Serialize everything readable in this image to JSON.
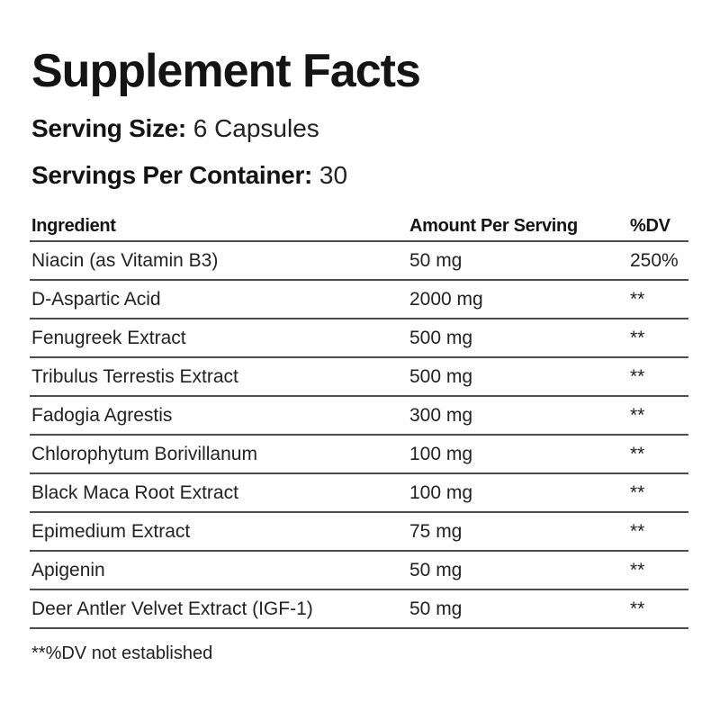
{
  "label": {
    "title": "Supplement Facts",
    "serving_size_label": "Serving Size:",
    "serving_size_value": "6 Capsules",
    "servings_per_container_label": "Servings Per Container:",
    "servings_per_container_value": "30",
    "footnote": "**%DV not established"
  },
  "table": {
    "columns": {
      "ingredient": "Ingredient",
      "amount": "Amount Per Serving",
      "dv": "%DV"
    },
    "rows": [
      {
        "ingredient": "Niacin (as Vitamin B3)",
        "amount": "50 mg",
        "dv": "250%"
      },
      {
        "ingredient": "D-Aspartic Acid",
        "amount": "2000 mg",
        "dv": "**"
      },
      {
        "ingredient": "Fenugreek Extract",
        "amount": "500 mg",
        "dv": "**"
      },
      {
        "ingredient": "Tribulus Terrestis Extract",
        "amount": "500 mg",
        "dv": "**"
      },
      {
        "ingredient": "Fadogia Agrestis",
        "amount": "300 mg",
        "dv": "**"
      },
      {
        "ingredient": "Chlorophytum Borivillanum",
        "amount": "100 mg",
        "dv": "**"
      },
      {
        "ingredient": "Black Maca Root Extract",
        "amount": "100 mg",
        "dv": "**"
      },
      {
        "ingredient": "Epimedium Extract",
        "amount": "75 mg",
        "dv": "**"
      },
      {
        "ingredient": "Apigenin",
        "amount": "50 mg",
        "dv": "**"
      },
      {
        "ingredient": "Deer Antler Velvet Extract (IGF-1)",
        "amount": "50 mg",
        "dv": "**"
      }
    ]
  },
  "colors": {
    "text": "#1c1c1c",
    "rule": "#4d4d4d",
    "background": "#ffffff"
  }
}
